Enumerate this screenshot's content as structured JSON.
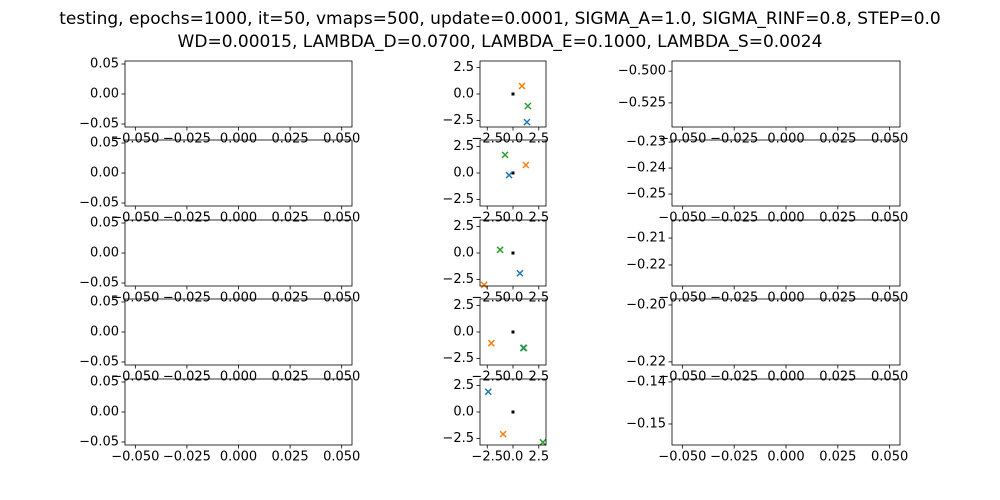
{
  "figure": {
    "title": [
      "testing, epochs=1000, it=50, vmaps=500, update=0.0001, SIGMA_A=1.0, SIGMA_RINF=0.8, STEP=0.0",
      "WD=0.00015, LAMBDA_D=0.0700, LAMBDA_E=0.1000, LAMBDA_S=0.0024"
    ]
  },
  "chart_data": [
    {
      "type": "scatter",
      "xlim": [
        -0.055,
        0.055
      ],
      "ylim": [
        -0.055,
        0.055
      ],
      "xticks": [
        {
          "value": -0.05,
          "label": "−0.050"
        },
        {
          "value": -0.025,
          "label": "−0.025"
        },
        {
          "value": 0,
          "label": "0.000"
        },
        {
          "value": 0.025,
          "label": "0.025"
        },
        {
          "value": 0.05,
          "label": "0.050"
        }
      ],
      "yticks": [
        {
          "value": -0.05,
          "label": "−0.05"
        },
        {
          "value": 0,
          "label": "0.00"
        },
        {
          "value": 0.05,
          "label": "0.05"
        }
      ]
    },
    {
      "type": "scatter",
      "xlim": [
        -3.2,
        3.2
      ],
      "ylim": [
        -3.1,
        3.1
      ],
      "xticks": [
        {
          "value": -2.5,
          "label": "−2.5"
        },
        {
          "value": 0,
          "label": "0.0"
        },
        2.5
      ],
      "yticks": [
        {
          "value": -2.5,
          "label": "−2.5"
        },
        {
          "value": 0,
          "label": "0.0"
        },
        2.5
      ],
      "series": [
        {
          "color": "#000000",
          "marker": "s",
          "x": [
            0
          ],
          "y": [
            0
          ]
        },
        {
          "color": "#1f77b4",
          "marker": "x",
          "x": [
            1.35
          ],
          "y": [
            -2.64
          ]
        },
        {
          "color": "#ff7f0e",
          "marker": "x",
          "x": [
            0.87
          ],
          "y": [
            0.75
          ]
        },
        {
          "color": "#2ca02c",
          "marker": "x",
          "x": [
            1.44
          ],
          "y": [
            -1.13
          ]
        }
      ]
    },
    {
      "type": "scatter",
      "xlim": [
        -0.055,
        0.055
      ],
      "ylim": [
        -0.544,
        -0.492
      ],
      "xticks": [
        {
          "value": -0.05,
          "label": "−0.050"
        },
        {
          "value": -0.025,
          "label": "−0.025"
        },
        {
          "value": 0,
          "label": "0.000"
        },
        {
          "value": 0.025,
          "label": "0.025"
        },
        {
          "value": 0.05,
          "label": "0.050"
        }
      ],
      "yticks": [
        {
          "value": -0.525,
          "label": "−0.525"
        },
        {
          "value": -0.5,
          "label": "−0.500"
        }
      ]
    },
    {
      "type": "scatter",
      "xlim": [
        -0.055,
        0.055
      ],
      "ylim": [
        -0.055,
        0.055
      ],
      "xticks": [
        {
          "value": -0.05,
          "label": "−0.050"
        },
        {
          "value": -0.025,
          "label": "−0.025"
        },
        {
          "value": 0,
          "label": "0.000"
        },
        {
          "value": 0.025,
          "label": "0.025"
        },
        {
          "value": 0.05,
          "label": "0.050"
        }
      ],
      "yticks": [
        {
          "value": -0.05,
          "label": "−0.05"
        },
        {
          "value": 0,
          "label": "0.00"
        },
        {
          "value": 0.05,
          "label": "0.05"
        }
      ]
    },
    {
      "type": "scatter",
      "xlim": [
        -3.2,
        3.2
      ],
      "ylim": [
        -3.1,
        3.1
      ],
      "xticks": [
        {
          "value": -2.5,
          "label": "−2.5"
        },
        {
          "value": 0,
          "label": "0.0"
        },
        2.5
      ],
      "yticks": [
        {
          "value": -2.5,
          "label": "−2.5"
        },
        {
          "value": 0,
          "label": "0.0"
        },
        2.5
      ],
      "series": [
        {
          "color": "#000000",
          "marker": "s",
          "x": [
            0
          ],
          "y": [
            0
          ]
        },
        {
          "color": "#1f77b4",
          "marker": "x",
          "x": [
            -0.38
          ],
          "y": [
            -0.2
          ]
        },
        {
          "color": "#ff7f0e",
          "marker": "x",
          "x": [
            1.25
          ],
          "y": [
            0.75
          ]
        },
        {
          "color": "#2ca02c",
          "marker": "x",
          "x": [
            -0.77
          ],
          "y": [
            1.7
          ]
        }
      ]
    },
    {
      "type": "scatter",
      "xlim": [
        -0.055,
        0.055
      ],
      "ylim": [
        -0.2546,
        -0.2292
      ],
      "xticks": [
        {
          "value": -0.05,
          "label": "−0.050"
        },
        {
          "value": -0.025,
          "label": "−0.025"
        },
        {
          "value": 0,
          "label": "0.000"
        },
        {
          "value": 0.025,
          "label": "0.025"
        },
        {
          "value": 0.05,
          "label": "0.050"
        }
      ],
      "yticks": [
        {
          "value": -0.25,
          "label": "−0.25"
        },
        {
          "value": -0.24,
          "label": "−0.24"
        },
        {
          "value": -0.23,
          "label": "−0.23"
        }
      ]
    },
    {
      "type": "scatter",
      "xlim": [
        -0.055,
        0.055
      ],
      "ylim": [
        -0.055,
        0.055
      ],
      "xticks": [
        {
          "value": -0.05,
          "label": "−0.050"
        },
        {
          "value": -0.025,
          "label": "−0.025"
        },
        {
          "value": 0,
          "label": "0.000"
        },
        {
          "value": 0.025,
          "label": "0.025"
        },
        {
          "value": 0.05,
          "label": "0.050"
        }
      ],
      "yticks": [
        {
          "value": -0.05,
          "label": "−0.05"
        },
        {
          "value": 0,
          "label": "0.00"
        },
        {
          "value": 0.05,
          "label": "0.05"
        }
      ]
    },
    {
      "type": "scatter",
      "xlim": [
        -3.2,
        3.2
      ],
      "ylim": [
        -3.1,
        3.1
      ],
      "xticks": [
        {
          "value": -2.5,
          "label": "−2.5"
        },
        {
          "value": 0,
          "label": "0.0"
        },
        2.5
      ],
      "yticks": [
        {
          "value": -2.5,
          "label": "−2.5"
        },
        {
          "value": 0,
          "label": "0.0"
        },
        2.5
      ],
      "series": [
        {
          "color": "#000000",
          "marker": "s",
          "x": [
            0
          ],
          "y": [
            0
          ]
        },
        {
          "color": "#1f77b4",
          "marker": "x",
          "x": [
            0.67
          ],
          "y": [
            -1.9
          ]
        },
        {
          "color": "#ff7f0e",
          "marker": "x",
          "x": [
            -2.8
          ],
          "y": [
            -3.0
          ]
        },
        {
          "color": "#2ca02c",
          "marker": "x",
          "x": [
            -1.25
          ],
          "y": [
            0.3
          ]
        }
      ]
    },
    {
      "type": "scatter",
      "xlim": [
        -0.055,
        0.055
      ],
      "ylim": [
        -0.2278,
        -0.2033
      ],
      "xticks": [
        {
          "value": -0.05,
          "label": "−0.050"
        },
        {
          "value": -0.025,
          "label": "−0.025"
        },
        {
          "value": 0,
          "label": "0.000"
        },
        {
          "value": 0.025,
          "label": "0.025"
        },
        {
          "value": 0.05,
          "label": "0.050"
        }
      ],
      "yticks": [
        {
          "value": -0.22,
          "label": "−0.22"
        },
        {
          "value": -0.21,
          "label": "−0.21"
        }
      ]
    },
    {
      "type": "scatter",
      "xlim": [
        -0.055,
        0.055
      ],
      "ylim": [
        -0.055,
        0.055
      ],
      "xticks": [
        {
          "value": -0.05,
          "label": "−0.050"
        },
        {
          "value": -0.025,
          "label": "−0.025"
        },
        {
          "value": 0,
          "label": "0.000"
        },
        {
          "value": 0.025,
          "label": "0.025"
        },
        {
          "value": 0.05,
          "label": "0.050"
        }
      ],
      "yticks": [
        {
          "value": -0.05,
          "label": "−0.05"
        },
        {
          "value": 0,
          "label": "0.00"
        },
        {
          "value": 0.05,
          "label": "0.05"
        }
      ]
    },
    {
      "type": "scatter",
      "xlim": [
        -3.2,
        3.2
      ],
      "ylim": [
        -3.1,
        3.1
      ],
      "xticks": [
        {
          "value": -2.5,
          "label": "−2.5"
        },
        {
          "value": 0,
          "label": "0.0"
        },
        2.5
      ],
      "yticks": [
        {
          "value": -2.5,
          "label": "−2.5"
        },
        {
          "value": 0,
          "label": "0.0"
        },
        2.5
      ],
      "series": [
        {
          "color": "#000000",
          "marker": "s",
          "x": [
            0
          ],
          "y": [
            0
          ]
        },
        {
          "color": "#1f77b4",
          "marker": "x",
          "x": [
            1.0
          ],
          "y": [
            -1.5
          ]
        },
        {
          "color": "#ff7f0e",
          "marker": "x",
          "x": [
            -2.1
          ],
          "y": [
            -1.05
          ]
        },
        {
          "color": "#2ca02c",
          "marker": "x",
          "x": [
            1.06
          ],
          "y": [
            -1.5
          ]
        }
      ]
    },
    {
      "type": "scatter",
      "xlim": [
        -0.055,
        0.055
      ],
      "ylim": [
        -0.2211,
        -0.1979
      ],
      "xticks": [
        {
          "value": -0.05,
          "label": "−0.050"
        },
        {
          "value": -0.025,
          "label": "−0.025"
        },
        {
          "value": 0,
          "label": "0.000"
        },
        {
          "value": 0.025,
          "label": "0.025"
        },
        {
          "value": 0.05,
          "label": "0.050"
        }
      ],
      "yticks": [
        {
          "value": -0.22,
          "label": "−0.22"
        },
        {
          "value": -0.2,
          "label": "−0.20"
        }
      ]
    },
    {
      "type": "scatter",
      "xlim": [
        -0.055,
        0.055
      ],
      "ylim": [
        -0.055,
        0.055
      ],
      "xticks": [
        {
          "value": -0.05,
          "label": "−0.050"
        },
        {
          "value": -0.025,
          "label": "−0.025"
        },
        {
          "value": 0,
          "label": "0.000"
        },
        {
          "value": 0.025,
          "label": "0.025"
        },
        {
          "value": 0.05,
          "label": "0.050"
        }
      ],
      "yticks": [
        {
          "value": -0.05,
          "label": "−0.05"
        },
        {
          "value": 0,
          "label": "0.00"
        },
        {
          "value": 0.05,
          "label": "0.05"
        }
      ]
    },
    {
      "type": "scatter",
      "xlim": [
        -3.2,
        3.2
      ],
      "ylim": [
        -3.1,
        3.1
      ],
      "xticks": [
        {
          "value": -2.5,
          "label": "−2.5"
        },
        {
          "value": 0,
          "label": "0.0"
        },
        2.5
      ],
      "yticks": [
        {
          "value": -2.5,
          "label": "−2.5"
        },
        {
          "value": 0,
          "label": "0.0"
        },
        2.5
      ],
      "series": [
        {
          "color": "#000000",
          "marker": "s",
          "x": [
            0
          ],
          "y": [
            0
          ]
        },
        {
          "color": "#1f77b4",
          "marker": "x",
          "x": [
            -2.4
          ],
          "y": [
            1.9
          ]
        },
        {
          "color": "#ff7f0e",
          "marker": "x",
          "x": [
            -0.96
          ],
          "y": [
            -2.08
          ]
        },
        {
          "color": "#2ca02c",
          "marker": "x",
          "x": [
            2.9
          ],
          "y": [
            -2.85
          ]
        }
      ]
    },
    {
      "type": "scatter",
      "xlim": [
        -0.055,
        0.055
      ],
      "ylim": [
        -0.155,
        -0.1393
      ],
      "xticks": [
        {
          "value": -0.05,
          "label": "−0.050"
        },
        {
          "value": -0.025,
          "label": "−0.025"
        },
        {
          "value": 0,
          "label": "0.000"
        },
        {
          "value": 0.025,
          "label": "0.025"
        },
        {
          "value": 0.05,
          "label": "0.050"
        }
      ],
      "yticks": [
        {
          "value": -0.15,
          "label": "−0.15"
        },
        {
          "value": -0.14,
          "label": "−0.14"
        }
      ]
    }
  ]
}
